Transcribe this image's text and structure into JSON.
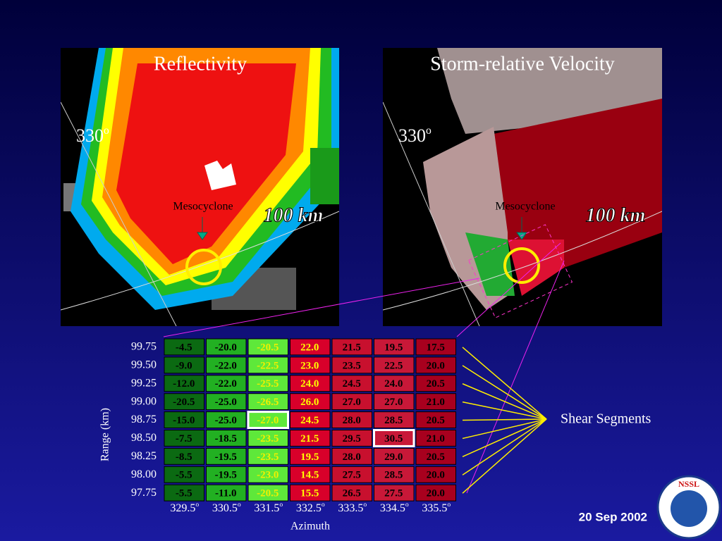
{
  "panels": [
    {
      "title": "Reflectivity",
      "azimuth": {
        "value": "330",
        "sup": "o"
      },
      "feature": "Mesocyclone",
      "range": "100 km"
    },
    {
      "title": "Storm-relative Velocity",
      "azimuth": {
        "value": "330",
        "sup": "o"
      },
      "feature": "Mesocyclone",
      "range": "100 km"
    }
  ],
  "table": {
    "ranges": [
      "99.75",
      "99.50",
      "99.25",
      "99.00",
      "98.75",
      "98.50",
      "98.25",
      "98.00",
      "97.75"
    ],
    "azimuths": [
      {
        "value": "329.5",
        "sup": "o"
      },
      {
        "value": "330.5",
        "sup": "o"
      },
      {
        "value": "331.5",
        "sup": "o"
      },
      {
        "value": "332.5",
        "sup": "o"
      },
      {
        "value": "333.5",
        "sup": "o"
      },
      {
        "value": "334.5",
        "sup": "o"
      },
      {
        "value": "335.5",
        "sup": "o"
      }
    ],
    "column_fill": [
      "#0b6a12",
      "#22b022",
      "#5ee83a",
      "#d8002a",
      "#c8102e",
      "#c81838",
      "#a8001e"
    ],
    "column_text": [
      "#000000",
      "#000000",
      "#f0f000",
      "#ffff00",
      "#000000",
      "#000000",
      "#000000"
    ],
    "rows": [
      [
        "-4.5",
        "-20.0",
        "-20.5",
        "22.0",
        "21.5",
        "19.5",
        "17.5"
      ],
      [
        "-9.0",
        "-22.0",
        "-22.5",
        "23.0",
        "23.5",
        "22.5",
        "20.0"
      ],
      [
        "-12.0",
        "-22.0",
        "-25.5",
        "24.0",
        "24.5",
        "24.0",
        "20.5"
      ],
      [
        "-20.5",
        "-25.0",
        "-26.5",
        "26.0",
        "27.0",
        "27.0",
        "21.0"
      ],
      [
        "-15.0",
        "-25.0",
        "-27.0",
        "24.5",
        "28.0",
        "28.5",
        "20.5"
      ],
      [
        "-7.5",
        "-18.5",
        "-23.5",
        "21.5",
        "29.5",
        "30.5",
        "21.0"
      ],
      [
        "-8.5",
        "-19.5",
        "-23.5",
        "19.5",
        "28.0",
        "29.0",
        "20.5"
      ],
      [
        "-5.5",
        "-19.5",
        "-23.0",
        "14.5",
        "27.5",
        "28.5",
        "20.0"
      ],
      [
        "-5.5",
        "-11.0",
        "-20.5",
        "15.5",
        "26.5",
        "27.5",
        "20.0"
      ]
    ],
    "y_label": "Range (km)",
    "x_label": "Azimuth"
  },
  "annotation": "Shear Segments",
  "date": "20 Sep 2002",
  "logo": "NSSL"
}
